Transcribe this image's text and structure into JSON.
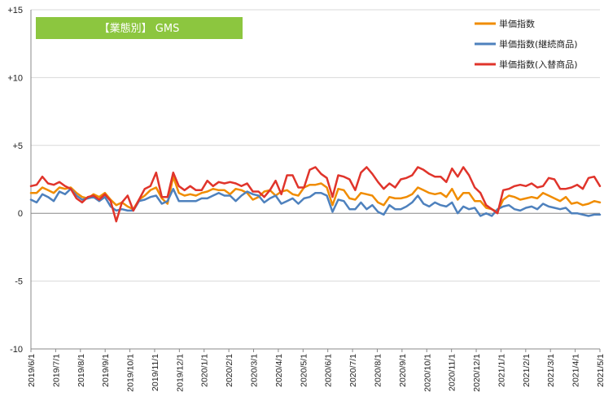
{
  "chart_data": {
    "type": "line",
    "title": "【業態別】 GMS",
    "xlabel": "",
    "ylabel": "",
    "ylim": [
      -10,
      15
    ],
    "y_ticks": [
      "+15",
      "+10",
      "+5",
      "0",
      "-5",
      "-10"
    ],
    "y_tick_values": [
      15,
      10,
      5,
      0,
      -5,
      -10
    ],
    "x_tick_labels": [
      "2019/6/1",
      "2019/7/1",
      "2019/8/1",
      "2019/9/1",
      "2019/10/1",
      "2019/11/1",
      "2019/12/1",
      "2020/1/1",
      "2020/2/1",
      "2020/3/1",
      "2020/4/1",
      "2020/5/1",
      "2020/6/1",
      "2020/7/1",
      "2020/8/1",
      "2020/9/1",
      "2020/10/1",
      "2020/11/1",
      "2020/12/1",
      "2021/1/1",
      "2021/2/1",
      "2021/3/1",
      "2021/4/1",
      "2021/5/1"
    ],
    "grid": {
      "horizontal": true,
      "vertical": false
    },
    "legend_position": "top-right",
    "colors": {
      "title_bg": "#8cc63f",
      "axis": "#888888",
      "grid": "#d9d9d9"
    },
    "series": [
      {
        "name": "単価指数",
        "color": "#f08c00",
        "values": [
          1.5,
          1.5,
          1.9,
          1.7,
          1.5,
          1.9,
          1.8,
          1.9,
          1.5,
          1.2,
          1.1,
          1.4,
          1.2,
          1.5,
          1.0,
          0.6,
          0.8,
          0.5,
          0.3,
          1.0,
          1.3,
          1.7,
          1.9,
          1.1,
          0.7,
          2.7,
          1.5,
          1.3,
          1.4,
          1.3,
          1.5,
          1.6,
          1.8,
          1.7,
          1.7,
          1.4,
          1.8,
          1.7,
          1.5,
          1.0,
          1.2,
          1.6,
          1.7,
          1.3,
          1.6,
          1.7,
          1.4,
          1.3,
          1.9,
          2.1,
          2.1,
          2.2,
          1.9,
          0.6,
          1.8,
          1.7,
          1.1,
          1.0,
          1.5,
          1.4,
          1.3,
          0.8,
          0.6,
          1.2,
          1.1,
          1.1,
          1.2,
          1.4,
          1.9,
          1.7,
          1.5,
          1.4,
          1.5,
          1.2,
          1.8,
          1.0,
          1.5,
          1.5,
          0.9,
          0.9,
          0.4,
          0.3,
          0.1,
          1.0,
          1.3,
          1.2,
          1.0,
          1.1,
          1.2,
          1.1,
          1.5,
          1.3,
          1.1,
          0.9,
          1.2,
          0.7,
          0.8,
          0.6,
          0.7,
          0.9,
          0.8
        ]
      },
      {
        "name": "単価指数(継続商品)",
        "color": "#4e81bd",
        "values": [
          1.0,
          0.8,
          1.4,
          1.2,
          0.9,
          1.6,
          1.4,
          1.8,
          1.3,
          1.0,
          1.1,
          1.2,
          0.9,
          1.2,
          0.5,
          0.2,
          0.3,
          0.2,
          0.2,
          0.9,
          1.0,
          1.2,
          1.3,
          0.7,
          0.9,
          1.8,
          0.9,
          0.9,
          0.9,
          0.9,
          1.1,
          1.1,
          1.3,
          1.5,
          1.3,
          1.3,
          0.9,
          1.3,
          1.6,
          1.4,
          1.3,
          0.8,
          1.1,
          1.3,
          0.7,
          0.9,
          1.1,
          0.7,
          1.1,
          1.2,
          1.5,
          1.5,
          1.3,
          0.1,
          1.0,
          0.9,
          0.3,
          0.3,
          0.8,
          0.3,
          0.6,
          0.1,
          -0.1,
          0.6,
          0.3,
          0.3,
          0.5,
          0.8,
          1.3,
          0.7,
          0.5,
          0.8,
          0.6,
          0.5,
          0.8,
          0.0,
          0.5,
          0.3,
          0.4,
          -0.2,
          0.0,
          -0.2,
          0.3,
          0.5,
          0.6,
          0.3,
          0.2,
          0.4,
          0.5,
          0.3,
          0.7,
          0.5,
          0.4,
          0.3,
          0.4,
          0.0,
          0.0,
          -0.1,
          -0.2,
          -0.1,
          -0.1
        ]
      },
      {
        "name": "単価指数(入替商品)",
        "color": "#e0342b",
        "values": [
          2.0,
          2.1,
          2.7,
          2.2,
          2.1,
          2.3,
          2.0,
          1.8,
          1.1,
          0.8,
          1.2,
          1.3,
          1.0,
          1.4,
          0.9,
          -0.6,
          0.8,
          1.3,
          0.2,
          1.0,
          1.8,
          2.0,
          3.0,
          1.2,
          1.2,
          3.0,
          2.0,
          1.7,
          2.0,
          1.7,
          1.7,
          2.4,
          2.0,
          2.3,
          2.2,
          2.3,
          2.2,
          2.0,
          2.2,
          1.6,
          1.6,
          1.2,
          1.7,
          2.4,
          1.4,
          2.8,
          2.8,
          1.9,
          1.9,
          3.2,
          3.4,
          2.9,
          2.6,
          1.2,
          2.8,
          2.7,
          2.5,
          1.7,
          3.0,
          3.4,
          2.9,
          2.3,
          1.8,
          2.2,
          1.9,
          2.5,
          2.6,
          2.8,
          3.4,
          3.2,
          2.9,
          2.7,
          2.7,
          2.3,
          3.3,
          2.7,
          3.4,
          2.8,
          1.9,
          1.5,
          0.6,
          0.3,
          0.0,
          1.7,
          1.8,
          2.0,
          2.1,
          2.0,
          2.2,
          1.9,
          2.0,
          2.6,
          2.5,
          1.8,
          1.8,
          1.9,
          2.1,
          1.8,
          2.6,
          2.7,
          2.0
        ]
      }
    ]
  }
}
